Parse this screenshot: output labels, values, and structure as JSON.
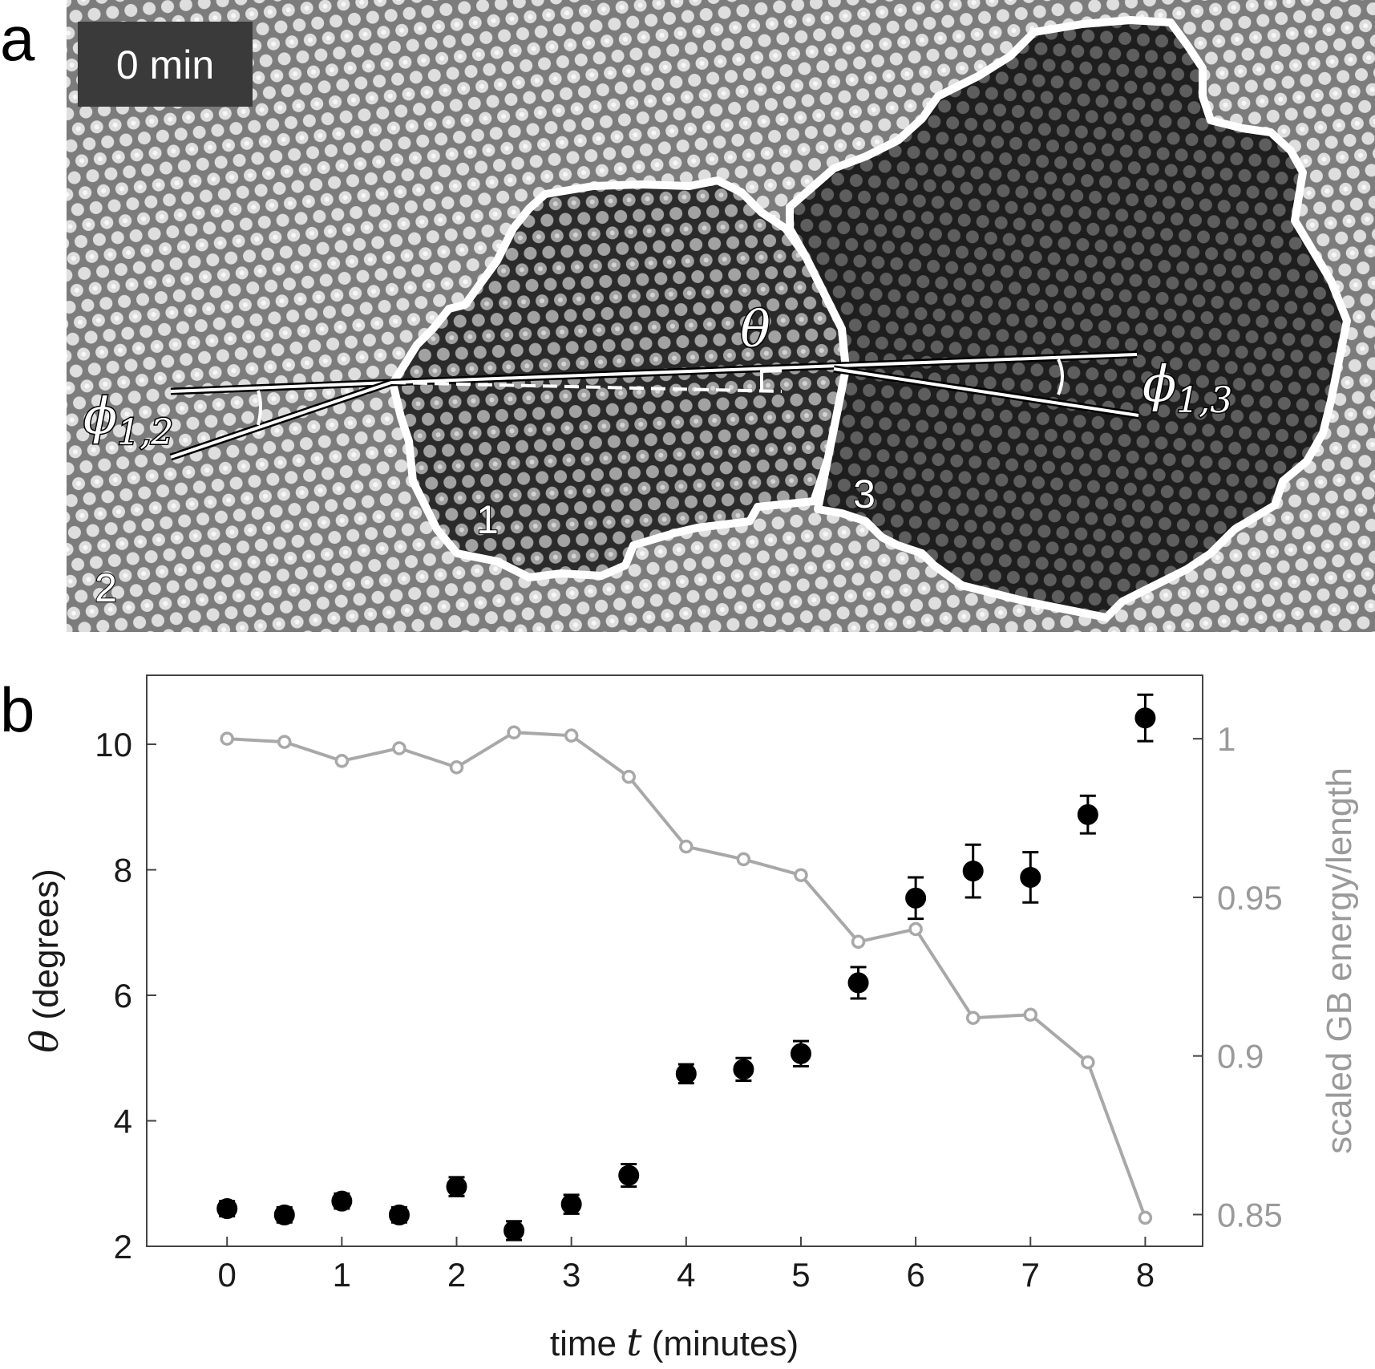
{
  "panel_a": {
    "letter": "a",
    "time_label": "0 min",
    "grain_labels": [
      "1",
      "2",
      "3"
    ],
    "angle_labels": {
      "theta": "θ",
      "phi12_sym": "ϕ",
      "phi12_sub": "1,2",
      "phi13_sym": "ϕ",
      "phi13_sub": "1,3"
    }
  },
  "panel_b": {
    "letter": "b"
  },
  "chart_data": {
    "type": "scatter",
    "x_label_prefix": "time ",
    "x_label_var": "t",
    "x_label_suffix": " (minutes)",
    "y_label_var": "θ",
    "y_label_suffix": " (degrees)",
    "y2_label": "scaled GB energy/length",
    "x": [
      0,
      0.5,
      1,
      1.5,
      2,
      2.5,
      3,
      3.5,
      4,
      4.5,
      5,
      5.5,
      6,
      6.5,
      7,
      7.5,
      8
    ],
    "xlim": [
      -0.7,
      8.5
    ],
    "ylim": [
      2,
      11.1
    ],
    "y2lim": [
      0.84,
      1.02
    ],
    "x_ticks": [
      "0",
      "1",
      "2",
      "3",
      "4",
      "5",
      "6",
      "7",
      "8"
    ],
    "y_ticks": [
      "2",
      "4",
      "6",
      "8",
      "10"
    ],
    "y2_ticks": [
      "0.85",
      "0.9",
      "0.95",
      "1"
    ],
    "series": [
      {
        "axis": "left",
        "style": "filled-circles-with-errorbars",
        "color": "#000000",
        "values": [
          2.6,
          2.5,
          2.72,
          2.5,
          2.95,
          2.25,
          2.67,
          3.13,
          4.75,
          4.82,
          5.07,
          6.2,
          7.55,
          7.98,
          7.88,
          8.88,
          10.42
        ],
        "errors": [
          0.12,
          0.12,
          0.12,
          0.12,
          0.15,
          0.15,
          0.15,
          0.18,
          0.15,
          0.18,
          0.2,
          0.25,
          0.33,
          0.42,
          0.4,
          0.3,
          0.37
        ]
      },
      {
        "axis": "right",
        "style": "line-open-circles",
        "color": "#a8a8a8",
        "values": [
          1.0,
          0.999,
          0.993,
          0.997,
          0.991,
          1.002,
          1.001,
          0.988,
          0.966,
          0.962,
          0.957,
          0.936,
          0.94,
          0.912,
          0.913,
          0.898,
          0.849
        ]
      }
    ]
  }
}
